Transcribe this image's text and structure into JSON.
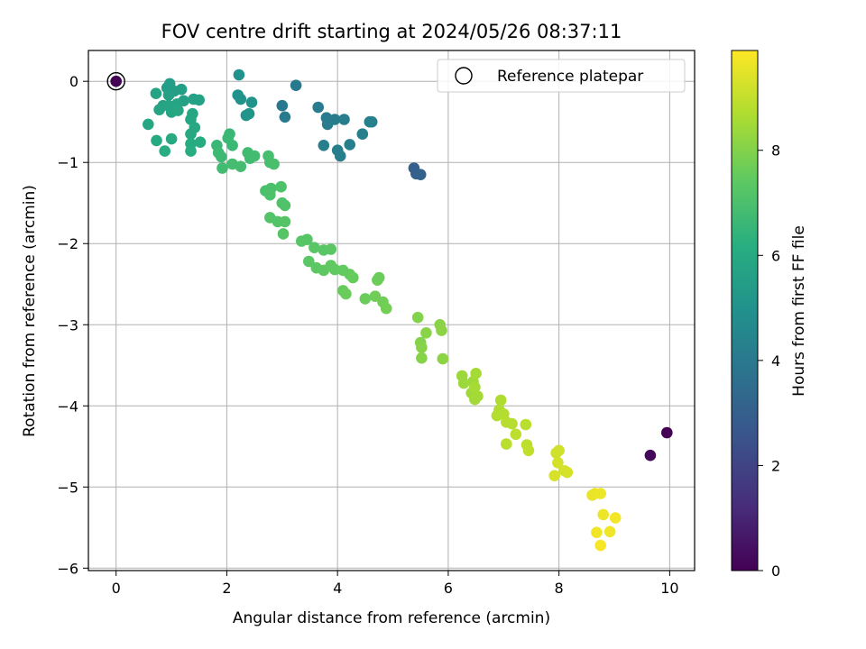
{
  "chart_data": {
    "type": "scatter",
    "title": "FOV centre drift starting at 2024/05/26 08:37:11",
    "xlabel": "Angular distance from reference (arcmin)",
    "ylabel": "Rotation from reference (arcmin)",
    "xlim": [
      -0.5,
      10.45
    ],
    "ylim": [
      -6.03,
      0.38
    ],
    "xticks": [
      0,
      2,
      4,
      6,
      8,
      10
    ],
    "yticks": [
      0,
      -1,
      -2,
      -3,
      -4,
      -5,
      -6
    ],
    "grid": true,
    "legend": {
      "placement": "top-right",
      "entries": [
        "Reference platepar"
      ]
    },
    "reference_point": {
      "x": 0,
      "y": 0,
      "c": 0
    },
    "colorbar": {
      "label": "Hours from first FF file",
      "range": [
        0,
        9.9
      ],
      "ticks": [
        0,
        2,
        4,
        6,
        8
      ],
      "colormap": "viridis"
    },
    "series": [
      {
        "columns": [
          "x",
          "y",
          "hours"
        ],
        "points": [
          [
            9.95,
            -4.33,
            0.0
          ],
          [
            9.65,
            -4.61,
            0.2
          ],
          [
            5.38,
            -1.07,
            3.0
          ],
          [
            5.42,
            -1.14,
            3.05
          ],
          [
            5.5,
            -1.15,
            3.1
          ],
          [
            3.25,
            -0.05,
            4.0
          ],
          [
            3.0,
            -0.3,
            4.0
          ],
          [
            3.05,
            -0.44,
            4.05
          ],
          [
            3.65,
            -0.32,
            4.1
          ],
          [
            3.8,
            -0.45,
            4.1
          ],
          [
            3.82,
            -0.53,
            4.1
          ],
          [
            3.95,
            -0.47,
            4.15
          ],
          [
            4.12,
            -0.47,
            4.15
          ],
          [
            3.75,
            -0.79,
            4.2
          ],
          [
            4.0,
            -0.85,
            4.2
          ],
          [
            4.05,
            -0.92,
            4.2
          ],
          [
            4.22,
            -0.78,
            4.25
          ],
          [
            4.45,
            -0.65,
            4.25
          ],
          [
            4.58,
            -0.5,
            4.3
          ],
          [
            4.62,
            -0.5,
            4.3
          ],
          [
            2.22,
            0.08,
            5.0
          ],
          [
            2.2,
            -0.17,
            5.0
          ],
          [
            2.25,
            -0.22,
            5.05
          ],
          [
            2.45,
            -0.26,
            5.05
          ],
          [
            2.4,
            -0.4,
            5.1
          ],
          [
            2.35,
            -0.42,
            5.1
          ],
          [
            0.97,
            -0.03,
            5.5
          ],
          [
            0.92,
            -0.08,
            5.5
          ],
          [
            1.05,
            -0.12,
            5.55
          ],
          [
            1.18,
            -0.1,
            5.55
          ],
          [
            0.95,
            -0.17,
            5.6
          ],
          [
            1.22,
            -0.24,
            5.6
          ],
          [
            1.4,
            -0.22,
            5.65
          ],
          [
            1.5,
            -0.23,
            5.65
          ],
          [
            0.72,
            -0.15,
            5.7
          ],
          [
            0.85,
            -0.3,
            5.7
          ],
          [
            0.78,
            -0.35,
            5.75
          ],
          [
            0.95,
            -0.3,
            5.75
          ],
          [
            1.1,
            -0.28,
            5.8
          ],
          [
            1.0,
            -0.38,
            5.8
          ],
          [
            1.12,
            -0.36,
            5.85
          ],
          [
            1.38,
            -0.4,
            5.85
          ],
          [
            1.35,
            -0.47,
            5.9
          ],
          [
            0.58,
            -0.53,
            5.9
          ],
          [
            1.42,
            -0.57,
            5.95
          ],
          [
            1.35,
            -0.65,
            5.95
          ],
          [
            0.73,
            -0.73,
            6.0
          ],
          [
            1.0,
            -0.71,
            6.0
          ],
          [
            1.35,
            -0.77,
            6.05
          ],
          [
            1.52,
            -0.75,
            6.05
          ],
          [
            0.88,
            -0.86,
            6.1
          ],
          [
            1.35,
            -0.86,
            6.1
          ],
          [
            1.82,
            -0.79,
            6.6
          ],
          [
            2.05,
            -0.65,
            6.6
          ],
          [
            2.02,
            -0.7,
            6.65
          ],
          [
            2.1,
            -0.79,
            6.65
          ],
          [
            1.85,
            -0.88,
            6.7
          ],
          [
            1.9,
            -0.93,
            6.7
          ],
          [
            2.38,
            -0.88,
            6.75
          ],
          [
            2.42,
            -0.95,
            6.75
          ],
          [
            2.5,
            -0.92,
            6.8
          ],
          [
            1.92,
            -1.07,
            6.8
          ],
          [
            2.1,
            -1.02,
            6.85
          ],
          [
            2.25,
            -1.05,
            6.85
          ],
          [
            2.75,
            -0.92,
            6.9
          ],
          [
            2.78,
            -1.0,
            6.9
          ],
          [
            2.85,
            -1.02,
            6.95
          ],
          [
            2.7,
            -1.35,
            7.0
          ],
          [
            2.8,
            -1.32,
            7.0
          ],
          [
            2.78,
            -1.4,
            7.05
          ],
          [
            2.98,
            -1.3,
            7.05
          ],
          [
            3.0,
            -1.5,
            7.1
          ],
          [
            3.05,
            -1.53,
            7.1
          ],
          [
            2.78,
            -1.68,
            7.15
          ],
          [
            2.92,
            -1.73,
            7.15
          ],
          [
            3.05,
            -1.73,
            7.2
          ],
          [
            3.02,
            -1.88,
            7.2
          ],
          [
            3.35,
            -1.97,
            7.25
          ],
          [
            3.45,
            -1.95,
            7.25
          ],
          [
            3.58,
            -2.05,
            7.3
          ],
          [
            3.75,
            -2.08,
            7.3
          ],
          [
            3.88,
            -2.07,
            7.35
          ],
          [
            3.48,
            -2.22,
            7.35
          ],
          [
            3.62,
            -2.3,
            7.4
          ],
          [
            3.75,
            -2.33,
            7.4
          ],
          [
            3.88,
            -2.27,
            7.45
          ],
          [
            3.95,
            -2.32,
            7.45
          ],
          [
            4.1,
            -2.33,
            7.5
          ],
          [
            4.22,
            -2.38,
            7.5
          ],
          [
            4.28,
            -2.42,
            7.55
          ],
          [
            4.1,
            -2.58,
            7.55
          ],
          [
            4.15,
            -2.62,
            7.6
          ],
          [
            4.5,
            -2.68,
            7.6
          ],
          [
            4.72,
            -2.45,
            7.65
          ],
          [
            4.75,
            -2.42,
            7.65
          ],
          [
            4.68,
            -2.65,
            7.7
          ],
          [
            4.82,
            -2.72,
            7.7
          ],
          [
            4.88,
            -2.8,
            7.75
          ],
          [
            5.45,
            -2.91,
            8.0
          ],
          [
            5.5,
            -3.22,
            8.0
          ],
          [
            5.52,
            -3.28,
            8.05
          ],
          [
            5.52,
            -3.41,
            8.05
          ],
          [
            5.6,
            -3.1,
            8.1
          ],
          [
            5.85,
            -3.0,
            8.1
          ],
          [
            5.88,
            -3.07,
            8.15
          ],
          [
            5.9,
            -3.42,
            8.15
          ],
          [
            6.25,
            -3.63,
            8.4
          ],
          [
            6.28,
            -3.72,
            8.4
          ],
          [
            6.45,
            -3.7,
            8.45
          ],
          [
            6.42,
            -3.84,
            8.45
          ],
          [
            6.48,
            -3.92,
            8.5
          ],
          [
            6.53,
            -3.88,
            8.5
          ],
          [
            6.5,
            -3.6,
            8.55
          ],
          [
            6.48,
            -3.77,
            8.55
          ],
          [
            6.95,
            -3.93,
            8.7
          ],
          [
            6.92,
            -4.05,
            8.7
          ],
          [
            6.88,
            -4.12,
            8.75
          ],
          [
            7.0,
            -4.1,
            8.75
          ],
          [
            7.05,
            -4.2,
            8.8
          ],
          [
            7.15,
            -4.22,
            8.8
          ],
          [
            7.4,
            -4.23,
            8.85
          ],
          [
            7.05,
            -4.47,
            8.85
          ],
          [
            7.22,
            -4.35,
            8.9
          ],
          [
            7.42,
            -4.48,
            8.9
          ],
          [
            7.45,
            -4.55,
            8.95
          ],
          [
            7.95,
            -4.58,
            9.2
          ],
          [
            8.0,
            -4.55,
            9.2
          ],
          [
            7.98,
            -4.7,
            9.25
          ],
          [
            8.1,
            -4.8,
            9.25
          ],
          [
            8.15,
            -4.82,
            9.3
          ],
          [
            7.92,
            -4.86,
            9.3
          ],
          [
            8.6,
            -5.1,
            9.6
          ],
          [
            8.65,
            -5.08,
            9.6
          ],
          [
            8.75,
            -5.08,
            9.65
          ],
          [
            8.8,
            -5.34,
            9.65
          ],
          [
            8.68,
            -5.56,
            9.7
          ],
          [
            8.92,
            -5.55,
            9.7
          ],
          [
            9.02,
            -5.38,
            9.75
          ],
          [
            8.75,
            -5.72,
            9.8
          ]
        ]
      }
    ]
  }
}
